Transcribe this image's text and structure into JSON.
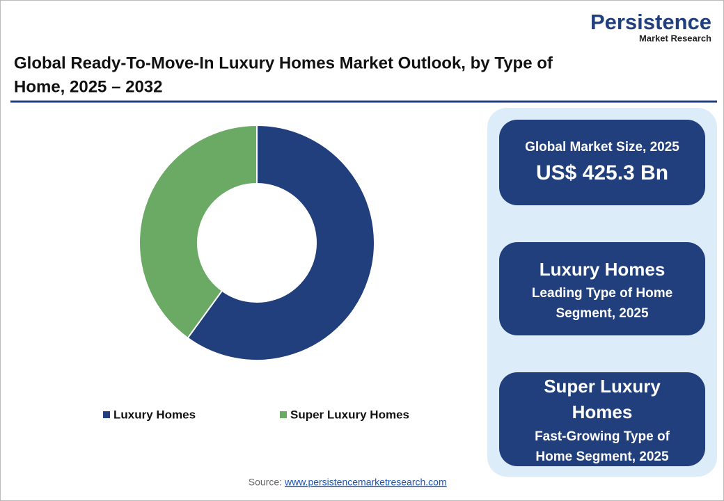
{
  "logo": {
    "name": "Persistence",
    "tagline": "Market Research"
  },
  "chart_data": {
    "type": "pie",
    "title": [
      "Global Ready-To-Move-In Luxury Homes Market Outlook, by Type of",
      "Home, 2025 – 2032"
    ],
    "categories": [
      "Luxury Homes",
      "Super Luxury Homes"
    ],
    "values": [
      60,
      40
    ],
    "colors": [
      "#213f7c",
      "#6aaa64"
    ],
    "donut": true
  },
  "cards": [
    {
      "title": [
        "Global Market Size, 2025"
      ],
      "value": [
        "US$ 425.3 Bn"
      ]
    },
    {
      "title": [
        "Luxury Homes"
      ],
      "value": [
        "Leading Type of Home",
        "Segment, 2025"
      ]
    },
    {
      "title": [
        "Super Luxury",
        "Homes"
      ],
      "value": [
        "Fast-Growing Type of",
        "Home Segment, 2025"
      ]
    }
  ],
  "source": {
    "label": "Source:",
    "link": "www.persistencemarketresearch.com"
  }
}
